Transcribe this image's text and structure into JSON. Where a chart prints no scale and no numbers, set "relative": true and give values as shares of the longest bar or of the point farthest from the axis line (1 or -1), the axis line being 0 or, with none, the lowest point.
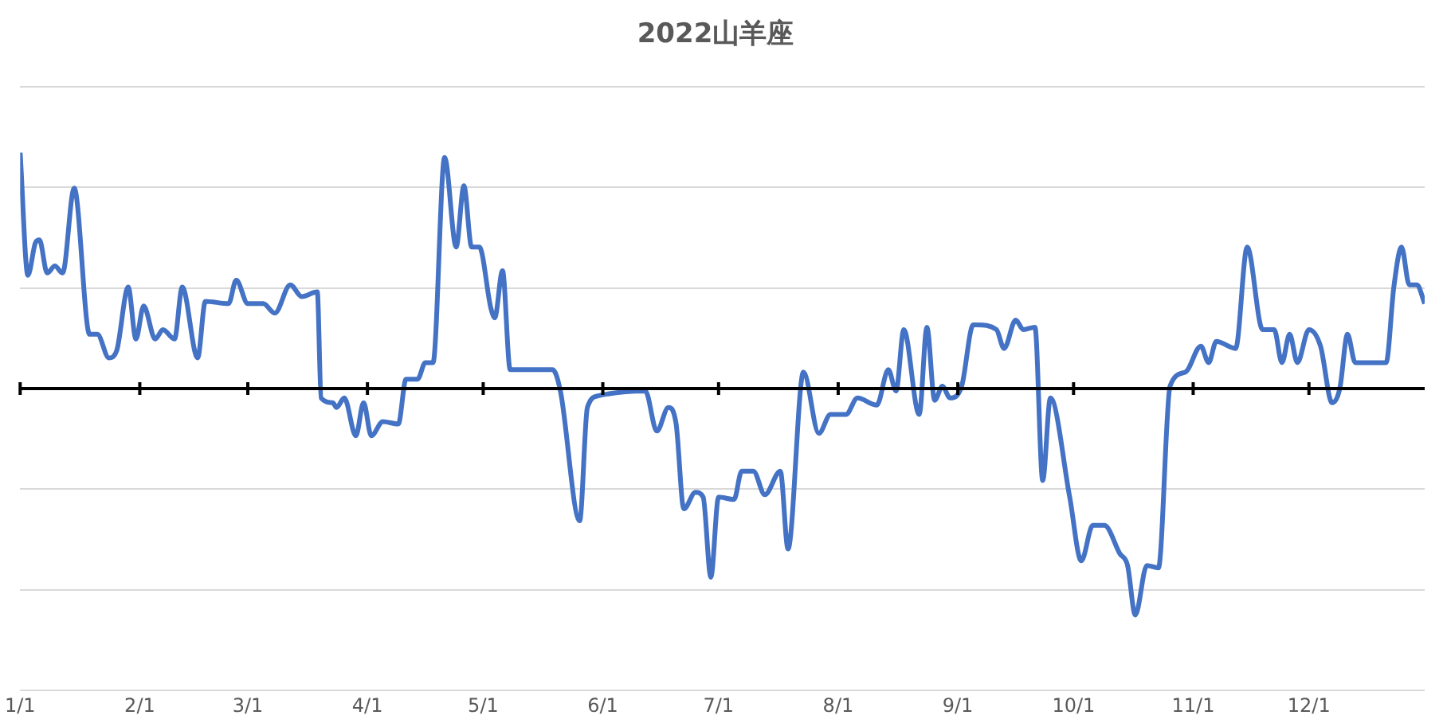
{
  "chart_data": {
    "type": "line",
    "title": "2022山羊座",
    "relative": true,
    "grid": "y",
    "marker": "none",
    "line_style": "solid",
    "xlim": [
      "--01-01",
      "--12-31"
    ],
    "xticks": [
      {
        "value": "--01-01",
        "label": "1/1"
      },
      {
        "value": "--02-01",
        "label": "2/1"
      },
      {
        "value": "--03-01",
        "label": "3/1"
      },
      {
        "value": "--04-01",
        "label": "4/1"
      },
      {
        "value": "--05-01",
        "label": "5/1"
      },
      {
        "value": "--06-01",
        "label": "6/1"
      },
      {
        "value": "--07-01",
        "label": "7/1"
      },
      {
        "value": "--08-01",
        "label": "8/1"
      },
      {
        "value": "--09-01",
        "label": "9/1"
      },
      {
        "value": "--10-01",
        "label": "10/1"
      },
      {
        "value": "--11-01",
        "label": "11/1"
      },
      {
        "value": "--12-01",
        "label": "12/1"
      }
    ],
    "x": [
      "--01-01",
      "--01-03",
      "--01-05",
      "--01-06",
      "--01-08",
      "--01-10",
      "--01-12",
      "--01-15",
      "--01-19",
      "--01-21",
      "--01-24",
      "--01-26",
      "--01-29",
      "--01-31",
      "--02-02",
      "--02-05",
      "--02-07",
      "--02-10",
      "--02-12",
      "--02-16",
      "--02-18",
      "--02-24",
      "--02-26",
      "--03-01",
      "--03-05",
      "--03-08",
      "--03-12",
      "--03-15",
      "--03-19",
      "--03-20",
      "--03-23",
      "--03-24",
      "--03-26",
      "--03-29",
      "--03-31",
      "--04-02",
      "--04-05",
      "--04-09",
      "--04-11",
      "--04-14",
      "--04-16",
      "--04-18",
      "--04-21",
      "--04-24",
      "--04-26",
      "--04-28",
      "--04-30",
      "--05-03",
      "--05-04",
      "--05-06",
      "--05-08",
      "--05-19",
      "--05-21",
      "--05-26",
      "--05-28",
      "--05-31",
      "--06-12",
      "--06-15",
      "--06-18",
      "--06-20",
      "--06-22",
      "--06-25",
      "--06-27",
      "--06-29",
      "--07-01",
      "--07-05",
      "--07-07",
      "--07-10",
      "--07-13",
      "--07-17",
      "--07-19",
      "--07-23",
      "--07-27",
      "--07-30",
      "--08-03",
      "--08-06",
      "--08-11",
      "--08-14",
      "--08-16",
      "--08-18",
      "--08-22",
      "--08-24",
      "--08-26",
      "--08-28",
      "--08-30",
      "--09-02",
      "--09-05",
      "--09-06",
      "--09-11",
      "--09-13",
      "--09-16",
      "--09-18",
      "--09-21",
      "--09-23",
      "--09-25",
      "--09-30",
      "--10-03",
      "--10-06",
      "--10-09",
      "--10-13",
      "--10-15",
      "--10-17",
      "--10-20",
      "--10-23",
      "--10-26",
      "--10-30",
      "--11-03",
      "--11-05",
      "--11-07",
      "--11-12",
      "--11-15",
      "--11-19",
      "--11-22",
      "--11-24",
      "--11-26",
      "--11-28",
      "--12-01",
      "--12-04",
      "--12-07",
      "--12-09",
      "--12-11",
      "--12-13",
      "--12-21",
      "--12-23",
      "--12-25",
      "--12-27",
      "--12-29",
      "--12-31"
    ],
    "series": [
      {
        "color": "#4472c4",
        "values": [
          1.0,
          0.48,
          0.62,
          0.63,
          0.49,
          0.52,
          0.49,
          0.85,
          0.23,
          0.23,
          0.13,
          0.16,
          0.43,
          0.21,
          0.35,
          0.21,
          0.25,
          0.21,
          0.43,
          0.13,
          0.37,
          0.36,
          0.46,
          0.36,
          0.36,
          0.32,
          0.44,
          0.39,
          0.41,
          -0.04,
          -0.06,
          -0.08,
          -0.04,
          -0.2,
          -0.06,
          -0.2,
          -0.14,
          -0.15,
          0.04,
          0.04,
          0.11,
          0.11,
          0.98,
          0.6,
          0.86,
          0.6,
          0.6,
          0.34,
          0.3,
          0.5,
          0.08,
          0.08,
          -0.01,
          -0.56,
          -0.08,
          -0.03,
          -0.01,
          -0.18,
          -0.08,
          -0.15,
          -0.51,
          -0.44,
          -0.46,
          -0.8,
          -0.46,
          -0.47,
          -0.35,
          -0.35,
          -0.45,
          -0.35,
          -0.68,
          0.07,
          -0.19,
          -0.11,
          -0.11,
          -0.04,
          -0.07,
          0.08,
          -0.01,
          0.25,
          -0.11,
          0.26,
          -0.05,
          0.01,
          -0.04,
          0.01,
          0.27,
          0.27,
          0.25,
          0.17,
          0.29,
          0.25,
          0.26,
          -0.39,
          -0.04,
          -0.46,
          -0.73,
          -0.58,
          -0.58,
          -0.7,
          -0.75,
          -0.96,
          -0.75,
          -0.76,
          0.01,
          0.07,
          0.18,
          0.11,
          0.2,
          0.17,
          0.6,
          0.25,
          0.25,
          0.11,
          0.23,
          0.11,
          0.25,
          0.18,
          -0.06,
          0.0,
          0.23,
          0.11,
          0.11,
          0.43,
          0.6,
          0.44,
          0.44,
          0.36
        ]
      }
    ]
  }
}
